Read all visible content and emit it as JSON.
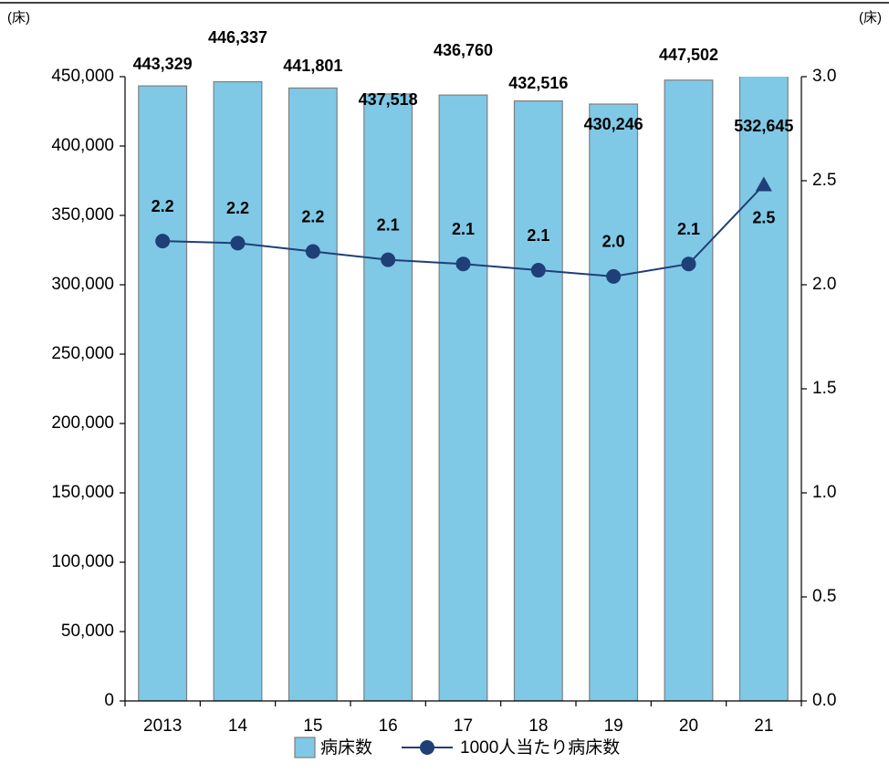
{
  "chart_data": {
    "type": "bar_line",
    "unit_left": "(床)",
    "unit_right": "(床)",
    "categories": [
      "2013",
      "14",
      "15",
      "16",
      "17",
      "18",
      "19",
      "20",
      "21"
    ],
    "ylim": [
      0,
      450000
    ],
    "yticks": [
      0,
      {
        "value": 50000,
        "label": "50,000"
      },
      {
        "value": 100000,
        "label": "100,000"
      },
      {
        "value": 150000,
        "label": "150,000"
      },
      {
        "value": 200000,
        "label": "200,000"
      },
      {
        "value": 250000,
        "label": "250,000"
      },
      {
        "value": 300000,
        "label": "300,000"
      },
      {
        "value": 350000,
        "label": "350,000"
      },
      {
        "value": 400000,
        "label": "400,000"
      },
      {
        "value": 450000,
        "label": "450,000"
      }
    ],
    "y2lim": [
      0,
      3
    ],
    "y2ticks": [
      {
        "value": 0,
        "label": "0.0"
      },
      {
        "value": 0.5,
        "label": "0.5"
      },
      {
        "value": 1,
        "label": "1.0"
      },
      {
        "value": 1.5,
        "label": "1.5"
      },
      {
        "value": 2,
        "label": "2.0"
      },
      {
        "value": 2.5,
        "label": "2.5"
      },
      {
        "value": 3,
        "label": "3.0"
      }
    ],
    "series": [
      {
        "name": "病床数",
        "type": "bar",
        "color": "#7fc9e6",
        "stroke": "#7f7f7f",
        "values": [
          443329,
          446337,
          441801,
          437518,
          436760,
          432516,
          430246,
          447502,
          532645
        ],
        "value_labels": [
          "443,329",
          "446,337",
          "441,801",
          "437,518",
          "436,760",
          "432,516",
          "430,246",
          "447,502",
          "532,645"
        ]
      },
      {
        "name": "1000人当たり病床数",
        "type": "line",
        "axis": "y2",
        "color": "#1f3f77",
        "values": [
          2.21,
          2.2,
          2.16,
          2.12,
          2.1,
          2.07,
          2.04,
          2.1,
          2.48
        ],
        "value_labels": [
          "2.2",
          "2.2",
          "2.2",
          "2.1",
          "2.1",
          "2.1",
          "2.0",
          "2.1",
          "2.5"
        ],
        "markers": [
          "circle",
          "circle",
          "circle",
          "circle",
          "circle",
          "circle",
          "circle",
          "circle",
          "triangle"
        ]
      }
    ]
  }
}
